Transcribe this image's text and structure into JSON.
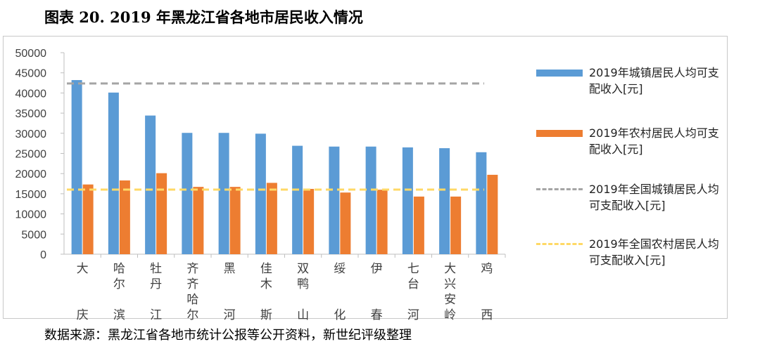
{
  "title": "图表 20. 2019 年黑龙江省各地市居民收入情况",
  "source": "数据来源：黑龙江省各地市统计公报等公开资料，新世纪评级整理",
  "colors": {
    "urban": "#5b9bd5",
    "rural": "#ed7d31",
    "national_urban": "#a5a5a5",
    "national_rural": "#ffd966"
  },
  "legend": [
    {
      "label": "2019年城镇居民人均可支配收入[元]",
      "kind": "bar",
      "color": "#5b9bd5"
    },
    {
      "label": "2019年农村居民人均可支配收入[元]",
      "kind": "bar",
      "color": "#ed7d31"
    },
    {
      "label": "2019年全国城镇居民人均可支配收入[元]",
      "kind": "dash",
      "color": "#a5a5a5"
    },
    {
      "label": "2019年全国农村居民人均可支配收入[元]",
      "kind": "dash",
      "color": "#ffd966"
    }
  ],
  "chart_data": {
    "type": "bar",
    "title": "",
    "xlabel": "",
    "ylabel": "",
    "ylim": [
      0,
      50000
    ],
    "yticks": [
      0,
      5000,
      10000,
      15000,
      20000,
      25000,
      30000,
      35000,
      40000,
      45000,
      50000
    ],
    "categories": [
      "大庆",
      "哈尔滨",
      "牡丹江",
      "齐齐哈尔",
      "黑河",
      "佳木斯",
      "双鸭山",
      "绥化",
      "伊春",
      "七台河",
      "大兴安岭",
      "鸡西"
    ],
    "series": [
      {
        "name": "2019年城镇居民人均可支配收入[元]",
        "values": [
          43200,
          40100,
          34400,
          30100,
          30100,
          29900,
          26900,
          26700,
          26700,
          26500,
          26300,
          25300
        ]
      },
      {
        "name": "2019年农村居民人均可支配收入[元]",
        "values": [
          17300,
          18300,
          20100,
          16700,
          16700,
          17700,
          16200,
          15300,
          16000,
          14300,
          14300,
          19700
        ]
      }
    ],
    "reference_lines": [
      {
        "name": "2019年全国城镇居民人均可支配收入[元]",
        "value": 42359,
        "style": "dashed"
      },
      {
        "name": "2019年全国农村居民人均可支配收入[元]",
        "value": 16021,
        "style": "dashed"
      }
    ],
    "grid": false,
    "legend_position": "right"
  }
}
